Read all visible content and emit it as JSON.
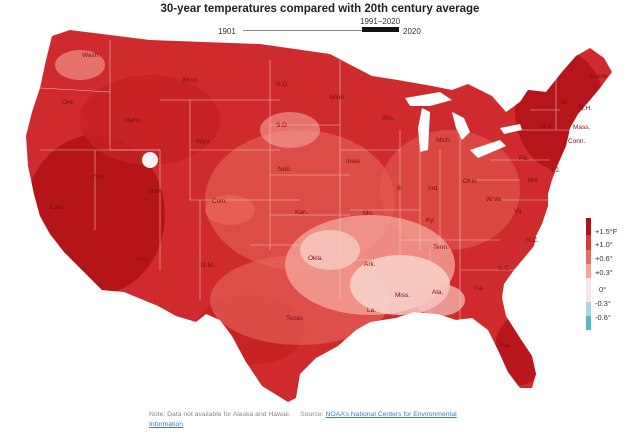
{
  "title": "30-year temperatures compared with 20th century average",
  "timeline": {
    "start": "1901",
    "range": "1991–2020",
    "end": "2020"
  },
  "legend": [
    {
      "label": "+1.5°F",
      "color": "#b11217"
    },
    {
      "label": "+1.0°",
      "color": "#d8393a"
    },
    {
      "label": "+0.6°",
      "color": "#ec6a5e"
    },
    {
      "label": "+0.3°",
      "color": "#f6a59a"
    },
    {
      "label": "0°",
      "color": "#f7e6e2"
    },
    {
      "label": "-0.3°",
      "color": "#a8d8df"
    },
    {
      "label": "-0.6°",
      "color": "#55b9c8"
    }
  ],
  "map_colors": {
    "base": "#cf2b2e",
    "hot": "#b11217",
    "mid": "#e25a52",
    "light": "#f4a396",
    "pale": "#f8ddd5",
    "border": "#f2c9c3"
  },
  "state_labels": [
    {
      "id": "wash",
      "text": "Wash."
    },
    {
      "id": "ore",
      "text": "Ore."
    },
    {
      "id": "idaho",
      "text": "Idaho"
    },
    {
      "id": "mont",
      "text": "Mont."
    },
    {
      "id": "nd",
      "text": "N.D."
    },
    {
      "id": "minn",
      "text": "Minn."
    },
    {
      "id": "sd",
      "text": "S.D."
    },
    {
      "id": "wyo",
      "text": "Wyo."
    },
    {
      "id": "nev",
      "text": "Nev."
    },
    {
      "id": "utah",
      "text": "Utah"
    },
    {
      "id": "colo",
      "text": "Colo."
    },
    {
      "id": "calif",
      "text": "Calif."
    },
    {
      "id": "ariz",
      "text": "Ariz."
    },
    {
      "id": "nm",
      "text": "N.M."
    },
    {
      "id": "neb",
      "text": "Neb."
    },
    {
      "id": "kan",
      "text": "Kan."
    },
    {
      "id": "okla",
      "text": "Okla."
    },
    {
      "id": "texas",
      "text": "Texas"
    },
    {
      "id": "iowa",
      "text": "Iowa"
    },
    {
      "id": "mo",
      "text": "Mo."
    },
    {
      "id": "ark",
      "text": "Ark."
    },
    {
      "id": "la",
      "text": "La."
    },
    {
      "id": "wis",
      "text": "Wis."
    },
    {
      "id": "mich",
      "text": "Mich."
    },
    {
      "id": "ill",
      "text": "Ill."
    },
    {
      "id": "ind",
      "text": "Ind."
    },
    {
      "id": "ohio",
      "text": "Ohio"
    },
    {
      "id": "ky",
      "text": "Ky."
    },
    {
      "id": "tenn",
      "text": "Tenn."
    },
    {
      "id": "miss",
      "text": "Miss."
    },
    {
      "id": "ala",
      "text": "Ala."
    },
    {
      "id": "ga",
      "text": "Ga."
    },
    {
      "id": "fla",
      "text": "Fla."
    },
    {
      "id": "sc",
      "text": "S.C."
    },
    {
      "id": "nc",
      "text": "N.C."
    },
    {
      "id": "va",
      "text": "Va."
    },
    {
      "id": "wva",
      "text": "W.Va."
    },
    {
      "id": "pa",
      "text": "Pa."
    },
    {
      "id": "ny",
      "text": "N.Y."
    },
    {
      "id": "vt",
      "text": "Vt."
    },
    {
      "id": "nh",
      "text": "N.H."
    },
    {
      "id": "maine",
      "text": "Maine"
    },
    {
      "id": "mass",
      "text": "Mass."
    },
    {
      "id": "conn",
      "text": "Conn."
    },
    {
      "id": "nj",
      "text": "N.J."
    },
    {
      "id": "md",
      "text": "Md."
    }
  ],
  "note": {
    "prefix": "Note: Data not available for Alaska and Hawaii.",
    "source_label": "Source:",
    "source_link": "NOAA’s National Centers for Environmental",
    "source_link_2": "Information"
  }
}
